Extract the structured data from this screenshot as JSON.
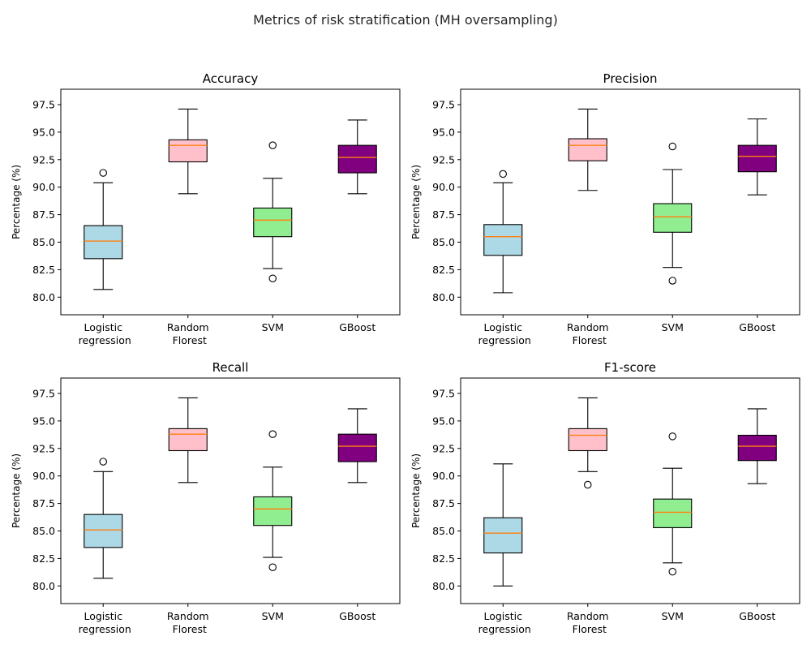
{
  "figure": {
    "title": "Metrics of risk stratification (MH oversampling)"
  },
  "chart_data": [
    {
      "type": "box",
      "title": "Accuracy",
      "xlabel": "",
      "ylabel": "Percentage (%)",
      "ylim": [
        78.4,
        98.9
      ],
      "yticks": [
        "80.0",
        "82.5",
        "85.0",
        "87.5",
        "90.0",
        "92.5",
        "95.0",
        "97.5"
      ],
      "categories": [
        "Logistic\n regression",
        "Random\n Florest",
        "SVM",
        "GBoost"
      ],
      "box_colors": [
        "#add8e6",
        "#ffc0cb",
        "#90ee90",
        "#800080"
      ],
      "series": [
        {
          "whisker_low": 80.7,
          "q1": 83.5,
          "median": 85.1,
          "q3": 86.5,
          "whisker_high": 90.4,
          "outliers": [
            91.3
          ]
        },
        {
          "whisker_low": 89.4,
          "q1": 92.3,
          "median": 93.8,
          "q3": 94.3,
          "whisker_high": 97.1,
          "outliers": []
        },
        {
          "whisker_low": 82.6,
          "q1": 85.5,
          "median": 87.0,
          "q3": 88.1,
          "whisker_high": 90.8,
          "outliers": [
            93.8,
            81.7
          ]
        },
        {
          "whisker_low": 89.4,
          "q1": 91.3,
          "median": 92.7,
          "q3": 93.8,
          "whisker_high": 96.1,
          "outliers": []
        }
      ]
    },
    {
      "type": "box",
      "title": "Precision",
      "xlabel": "",
      "ylabel": "Percentage (%)",
      "ylim": [
        78.4,
        98.9
      ],
      "yticks": [
        "80.0",
        "82.5",
        "85.0",
        "87.5",
        "90.0",
        "92.5",
        "95.0",
        "97.5"
      ],
      "categories": [
        "Logistic\n regression",
        "Random\n Florest",
        "SVM",
        "GBoost"
      ],
      "box_colors": [
        "#add8e6",
        "#ffc0cb",
        "#90ee90",
        "#800080"
      ],
      "series": [
        {
          "whisker_low": 80.4,
          "q1": 83.8,
          "median": 85.5,
          "q3": 86.6,
          "whisker_high": 90.4,
          "outliers": [
            91.2
          ]
        },
        {
          "whisker_low": 89.7,
          "q1": 92.4,
          "median": 93.8,
          "q3": 94.4,
          "whisker_high": 97.1,
          "outliers": []
        },
        {
          "whisker_low": 82.7,
          "q1": 85.9,
          "median": 87.3,
          "q3": 88.5,
          "whisker_high": 91.6,
          "outliers": [
            93.7,
            81.5
          ]
        },
        {
          "whisker_low": 89.3,
          "q1": 91.4,
          "median": 92.8,
          "q3": 93.8,
          "whisker_high": 96.2,
          "outliers": []
        }
      ]
    },
    {
      "type": "box",
      "title": "Recall",
      "xlabel": "",
      "ylabel": "Percentage (%)",
      "ylim": [
        78.4,
        98.9
      ],
      "yticks": [
        "80.0",
        "82.5",
        "85.0",
        "87.5",
        "90.0",
        "92.5",
        "95.0",
        "97.5"
      ],
      "categories": [
        "Logistic\n regression",
        "Random\n Florest",
        "SVM",
        "GBoost"
      ],
      "box_colors": [
        "#add8e6",
        "#ffc0cb",
        "#90ee90",
        "#800080"
      ],
      "series": [
        {
          "whisker_low": 80.7,
          "q1": 83.5,
          "median": 85.1,
          "q3": 86.5,
          "whisker_high": 90.4,
          "outliers": [
            91.3
          ]
        },
        {
          "whisker_low": 89.4,
          "q1": 92.3,
          "median": 93.8,
          "q3": 94.3,
          "whisker_high": 97.1,
          "outliers": []
        },
        {
          "whisker_low": 82.6,
          "q1": 85.5,
          "median": 87.0,
          "q3": 88.1,
          "whisker_high": 90.8,
          "outliers": [
            93.8,
            81.7
          ]
        },
        {
          "whisker_low": 89.4,
          "q1": 91.3,
          "median": 92.7,
          "q3": 93.8,
          "whisker_high": 96.1,
          "outliers": []
        }
      ]
    },
    {
      "type": "box",
      "title": "F1-score",
      "xlabel": "",
      "ylabel": "Percentage (%)",
      "ylim": [
        78.4,
        98.9
      ],
      "yticks": [
        "80.0",
        "82.5",
        "85.0",
        "87.5",
        "90.0",
        "92.5",
        "95.0",
        "97.5"
      ],
      "categories": [
        "Logistic\n regression",
        "Random\n Florest",
        "SVM",
        "GBoost"
      ],
      "box_colors": [
        "#add8e6",
        "#ffc0cb",
        "#90ee90",
        "#800080"
      ],
      "series": [
        {
          "whisker_low": 80.0,
          "q1": 83.0,
          "median": 84.8,
          "q3": 86.2,
          "whisker_high": 91.1,
          "outliers": []
        },
        {
          "whisker_low": 90.4,
          "q1": 92.3,
          "median": 93.7,
          "q3": 94.3,
          "whisker_high": 97.1,
          "outliers": [
            89.2
          ]
        },
        {
          "whisker_low": 82.1,
          "q1": 85.3,
          "median": 86.7,
          "q3": 87.9,
          "whisker_high": 90.7,
          "outliers": [
            93.6,
            81.3
          ]
        },
        {
          "whisker_low": 89.3,
          "q1": 91.4,
          "median": 92.7,
          "q3": 93.7,
          "whisker_high": 96.1,
          "outliers": []
        }
      ]
    }
  ]
}
